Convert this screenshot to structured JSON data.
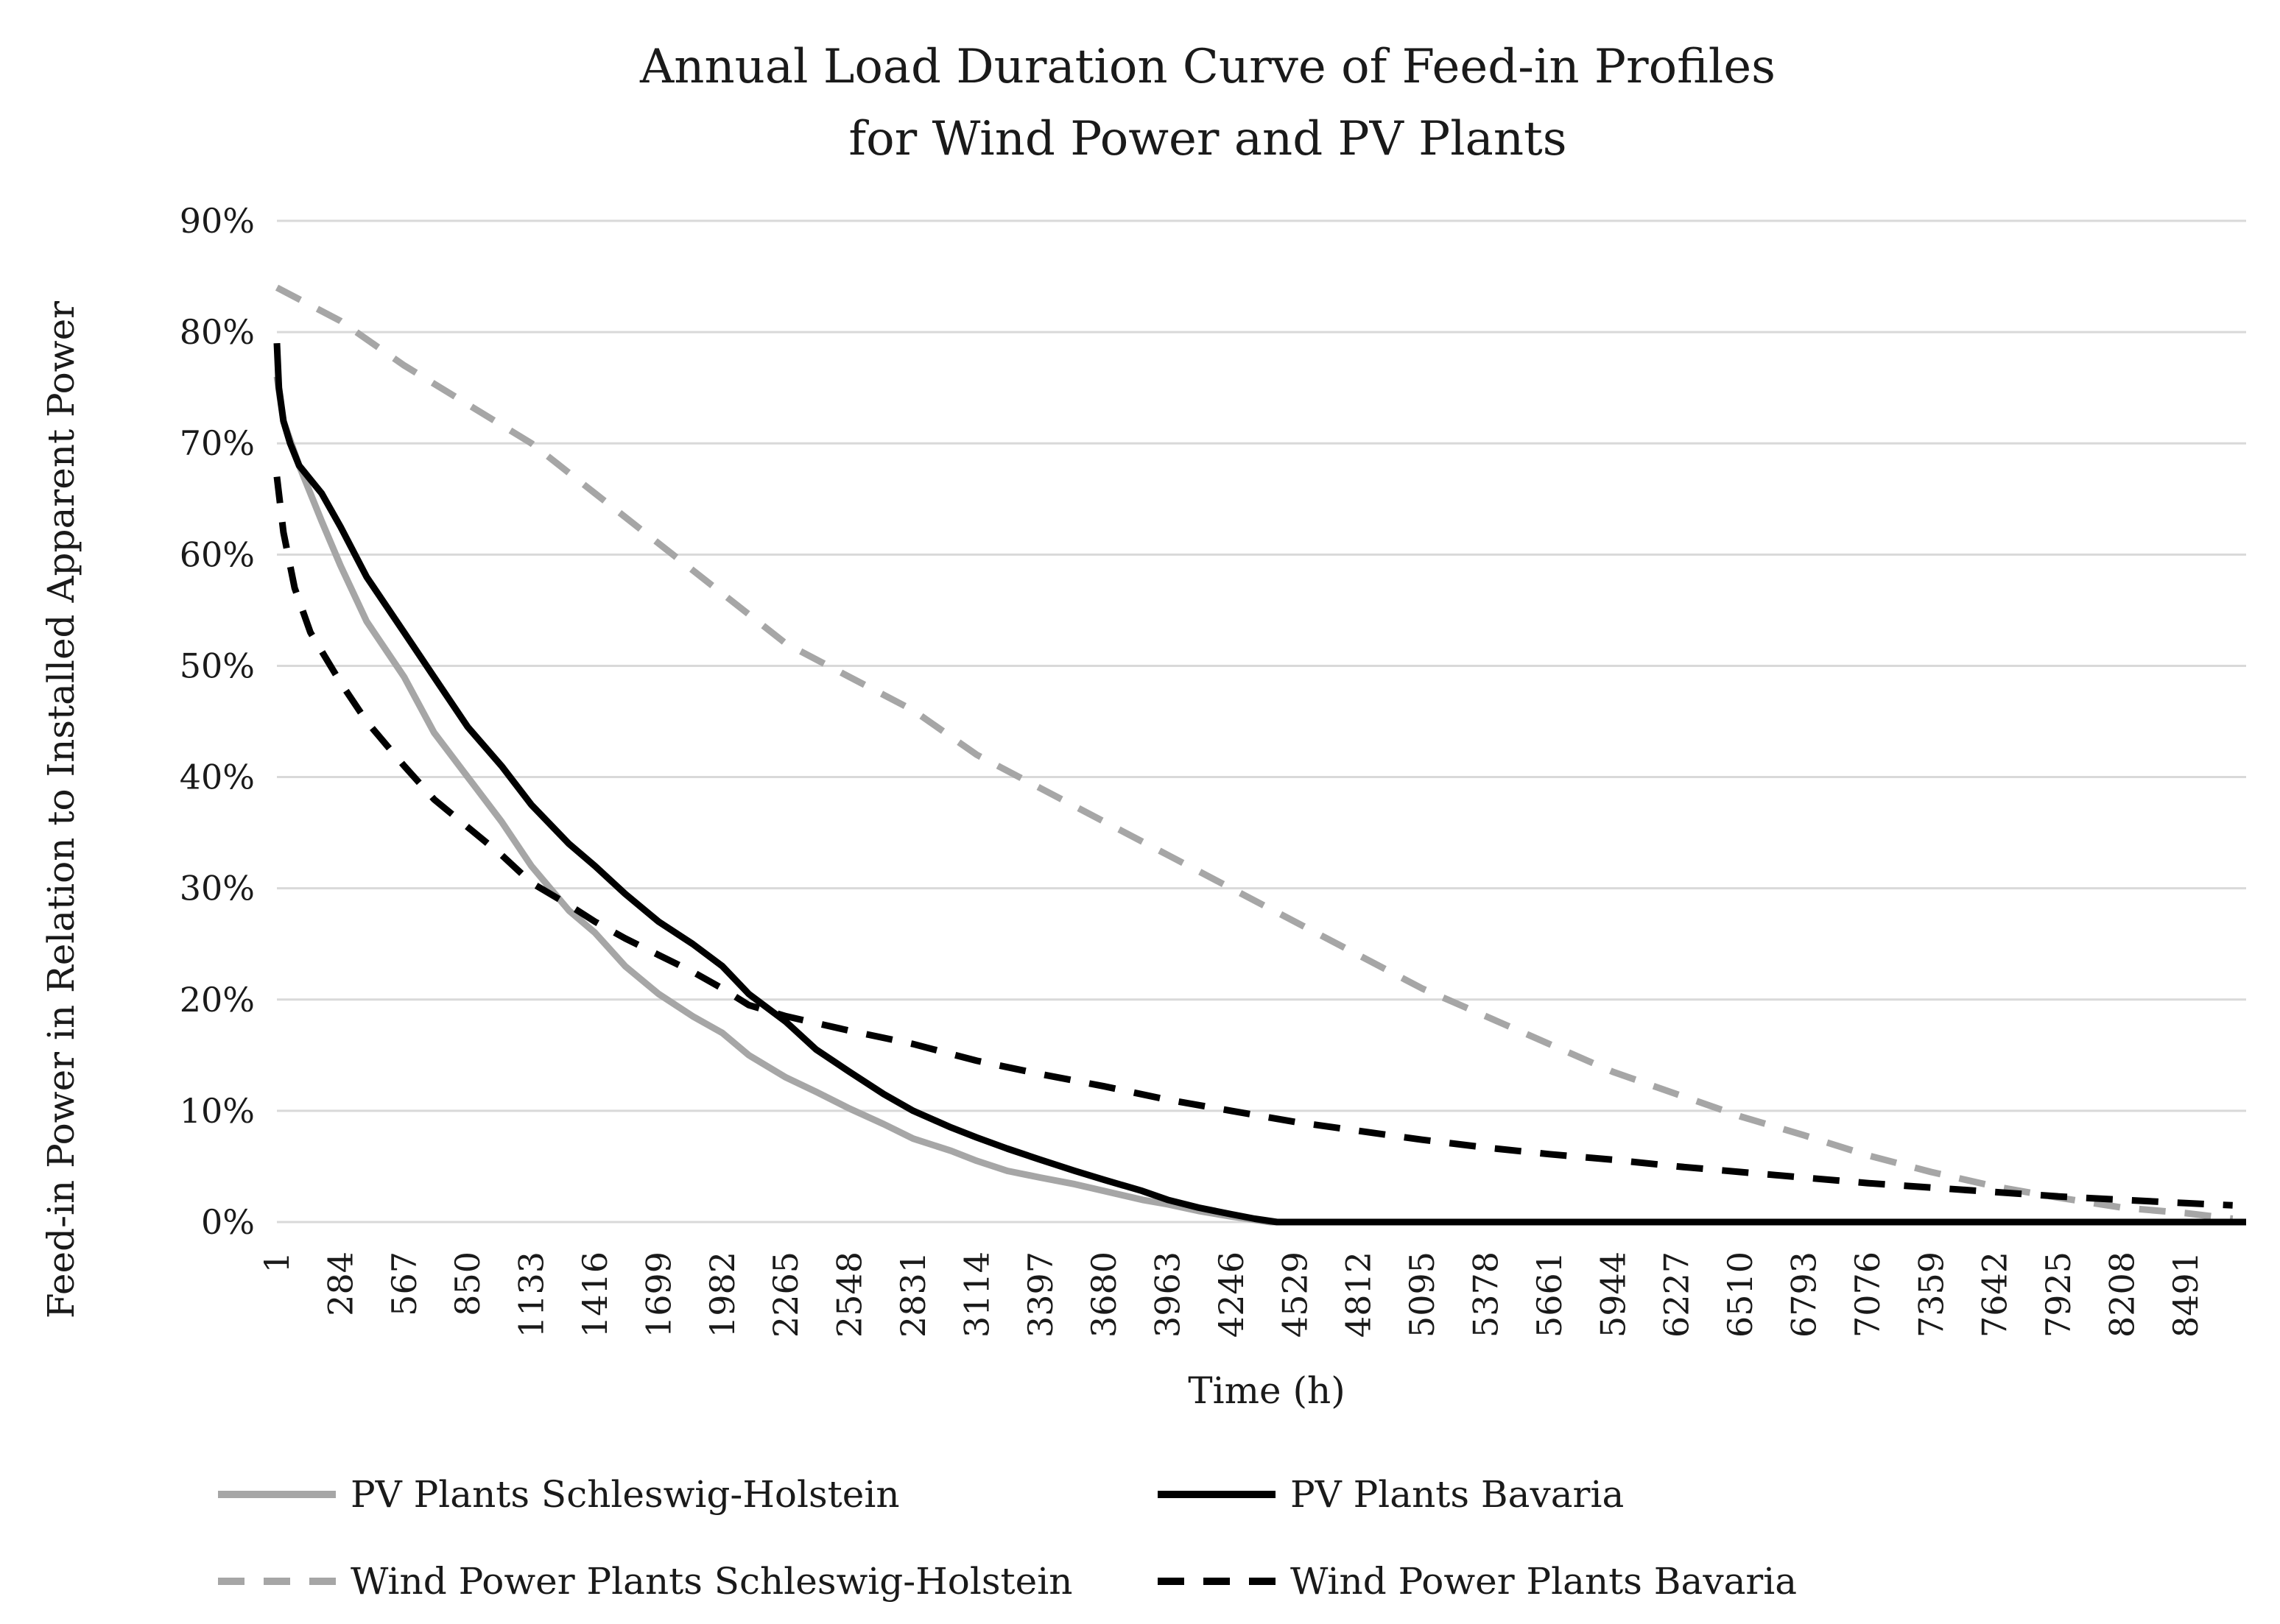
{
  "chart_data": {
    "type": "line",
    "title": "Annual Load Duration Curve of Feed-in Profiles",
    "subtitle": "for Wind Power and PV Plants",
    "xlabel": "Time (h)",
    "ylabel": "Feed-in Power in Relation to Installed Apparent Power",
    "xlim": [
      1,
      8760
    ],
    "ylim": [
      0,
      90
    ],
    "y_ticks": [
      "0%",
      "10%",
      "20%",
      "30%",
      "40%",
      "50%",
      "60%",
      "70%",
      "80%",
      "90%"
    ],
    "x_ticks": [
      "1",
      "284",
      "567",
      "850",
      "1133",
      "1416",
      "1699",
      "1982",
      "2265",
      "2548",
      "2831",
      "3114",
      "3397",
      "3680",
      "3963",
      "4246",
      "4529",
      "4812",
      "5095",
      "5378",
      "5661",
      "5944",
      "6227",
      "6510",
      "6793",
      "7076",
      "7359",
      "7642",
      "7925",
      "8208",
      "8491"
    ],
    "grid": true,
    "legend": "bottom",
    "series": [
      {
        "name": "PV Plants Schleswig-Holstein",
        "color": "#a6a6a6",
        "dash": "solid",
        "x": [
          1,
          30,
          100,
          200,
          284,
          400,
          567,
          700,
          850,
          1000,
          1133,
          1300,
          1416,
          1550,
          1699,
          1850,
          1982,
          2100,
          2265,
          2400,
          2548,
          2700,
          2831,
          3000,
          3114,
          3250,
          3397,
          3550,
          3680,
          3850,
          3963,
          4100,
          4246,
          4350,
          4420,
          8760
        ],
        "y": [
          76,
          72,
          68,
          63,
          59,
          54,
          49,
          44,
          40,
          36,
          32,
          28,
          26,
          23,
          20.5,
          18.5,
          17,
          15,
          13,
          11.7,
          10.2,
          8.8,
          7.5,
          6.4,
          5.5,
          4.6,
          4,
          3.4,
          2.8,
          2,
          1.6,
          1,
          0.5,
          0.2,
          0,
          0
        ]
      },
      {
        "name": "PV Plants Bavaria",
        "color": "#000000",
        "dash": "solid",
        "x": [
          1,
          10,
          30,
          60,
          100,
          200,
          284,
          400,
          567,
          700,
          850,
          1000,
          1133,
          1300,
          1416,
          1550,
          1699,
          1850,
          1982,
          2100,
          2265,
          2400,
          2548,
          2700,
          2831,
          3000,
          3114,
          3250,
          3397,
          3550,
          3680,
          3850,
          3963,
          4100,
          4246,
          4350,
          4450,
          8760
        ],
        "y": [
          79,
          75,
          72,
          70,
          68,
          65.5,
          62.5,
          58,
          53,
          49,
          44.5,
          41,
          37.5,
          34,
          32,
          29.5,
          27,
          25,
          23,
          20.5,
          18,
          15.5,
          13.5,
          11.5,
          10,
          8.5,
          7.6,
          6.6,
          5.6,
          4.6,
          3.8,
          2.8,
          2,
          1.3,
          0.7,
          0.3,
          0,
          0
        ]
      },
      {
        "name": "Wind Power Plants Schleswig-Holstein",
        "color": "#a6a6a6",
        "dash": "dashed",
        "x": [
          1,
          284,
          567,
          850,
          1133,
          1416,
          1699,
          1982,
          2265,
          2548,
          2831,
          3114,
          3397,
          3680,
          3963,
          4246,
          4529,
          4812,
          5095,
          5378,
          5661,
          5944,
          6227,
          6510,
          6793,
          7076,
          7359,
          7642,
          7925,
          8208,
          8491,
          8700
        ],
        "y": [
          84,
          81,
          77,
          73.5,
          70,
          65.5,
          61,
          56.5,
          52,
          49,
          46,
          42,
          39,
          36,
          33,
          30,
          27,
          24,
          21,
          18.5,
          16,
          13.5,
          11.5,
          9.5,
          7.8,
          6,
          4.5,
          3.2,
          2.2,
          1.3,
          0.8,
          0.3
        ]
      },
      {
        "name": "Wind Power Plants Bavaria",
        "color": "#000000",
        "dash": "dashed",
        "x": [
          1,
          30,
          80,
          150,
          284,
          400,
          567,
          700,
          850,
          1000,
          1133,
          1300,
          1416,
          1550,
          1699,
          1850,
          1982,
          2100,
          2265,
          2548,
          2831,
          3114,
          3397,
          3680,
          3963,
          4246,
          4529,
          4812,
          5095,
          5378,
          5661,
          5944,
          6227,
          6510,
          6793,
          7076,
          7359,
          7642,
          7925,
          8208,
          8491,
          8700
        ],
        "y": [
          67,
          62,
          57,
          53,
          48.5,
          45,
          41,
          38,
          35.5,
          33,
          30.5,
          28.5,
          27,
          25.5,
          24,
          22.5,
          21,
          19.5,
          18.5,
          17.2,
          16,
          14.5,
          13.3,
          12.2,
          11,
          10,
          9,
          8.2,
          7.4,
          6.7,
          6.1,
          5.6,
          5,
          4.5,
          4,
          3.5,
          3.1,
          2.7,
          2.3,
          2,
          1.7,
          1.5
        ]
      }
    ]
  }
}
